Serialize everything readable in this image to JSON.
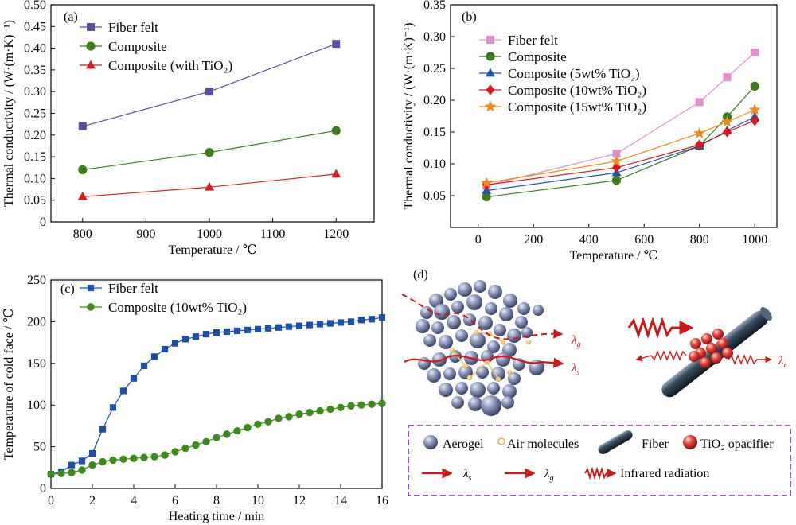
{
  "chart_data": [
    {
      "panel": "(a)",
      "type": "line",
      "xlabel": "Temperature / ℃",
      "ylabel": "Thermal conductivity / (W·(m·K)⁻¹)",
      "xlim": [
        750,
        1260
      ],
      "ylim": [
        0,
        0.5
      ],
      "xticks": [
        "800",
        "900",
        "1000",
        "1100",
        "1200"
      ],
      "yticks": [
        "0",
        "0.05",
        "0.10",
        "0.15",
        "0.20",
        "0.25",
        "0.30",
        "0.35",
        "0.40",
        "0.45",
        "0.50"
      ],
      "legend_position": "top-left",
      "series": [
        {
          "name": "Fiber felt",
          "color": "#5a4fa0",
          "marker": "square",
          "x": [
            800,
            1000,
            1200
          ],
          "y": [
            0.22,
            0.3,
            0.41
          ]
        },
        {
          "name": "Composite",
          "color": "#3d7d1e",
          "marker": "circle",
          "x": [
            800,
            1000,
            1200
          ],
          "y": [
            0.12,
            0.16,
            0.21
          ]
        },
        {
          "name": "Composite (with TiO₂)",
          "color": "#d62020",
          "marker": "triangle",
          "x": [
            800,
            1000,
            1200
          ],
          "y": [
            0.058,
            0.08,
            0.11
          ]
        }
      ]
    },
    {
      "panel": "(b)",
      "type": "line",
      "xlabel": "Temperature / ℃",
      "ylabel": "Thermal conductivity / (W·(m·K)⁻¹)",
      "xlim": [
        -100,
        1080
      ],
      "ylim": [
        0,
        0.35
      ],
      "xticks": [
        "0",
        "200",
        "400",
        "600",
        "800",
        "1000"
      ],
      "yticks": [
        "0.05",
        "0.10",
        "0.15",
        "0.20",
        "0.25",
        "0.30",
        "0.35"
      ],
      "legend_position": "top-left",
      "series": [
        {
          "name": "Fiber felt",
          "color": "#e58ecd",
          "marker": "square",
          "x": [
            30,
            500,
            800,
            900,
            1000
          ],
          "y": [
            0.066,
            0.116,
            0.197,
            0.236,
            0.275
          ]
        },
        {
          "name": "Composite",
          "color": "#3d7d1e",
          "marker": "circle",
          "x": [
            30,
            500,
            800,
            900,
            1000
          ],
          "y": [
            0.048,
            0.074,
            0.128,
            0.174,
            0.222
          ]
        },
        {
          "name": "Composite (5wt% TiO₂)",
          "color": "#2255aa",
          "marker": "triangle",
          "x": [
            30,
            500,
            800,
            900,
            1000
          ],
          "y": [
            0.058,
            0.086,
            0.128,
            0.152,
            0.174
          ]
        },
        {
          "name": "Composite (10wt% TiO₂)",
          "color": "#d61a1a",
          "marker": "diamond",
          "x": [
            30,
            500,
            800,
            900,
            1000
          ],
          "y": [
            0.067,
            0.094,
            0.13,
            0.15,
            0.168
          ]
        },
        {
          "name": "Composite (15wt% TiO₂)",
          "color": "#f08a1c",
          "marker": "star",
          "x": [
            30,
            500,
            800,
            900,
            1000
          ],
          "y": [
            0.07,
            0.104,
            0.148,
            0.166,
            0.185
          ]
        }
      ]
    },
    {
      "panel": "(c)",
      "type": "line",
      "xlabel": "Heating time / min",
      "ylabel": "Temperature of cold face / ℃",
      "xlim": [
        0,
        16
      ],
      "ylim": [
        0,
        250
      ],
      "xticks": [
        "0",
        "2",
        "4",
        "6",
        "8",
        "10",
        "12",
        "14",
        "16"
      ],
      "yticks": [
        "0",
        "50",
        "100",
        "150",
        "200",
        "250"
      ],
      "legend_position": "top-left",
      "series": [
        {
          "name": "Fiber felt",
          "color": "#1d4fa8",
          "marker": "square",
          "x": [
            0,
            0.5,
            1,
            1.5,
            2,
            2.5,
            3,
            3.5,
            4,
            4.5,
            5,
            5.5,
            6,
            6.5,
            7,
            7.5,
            8,
            8.5,
            9,
            9.5,
            10,
            10.5,
            11,
            11.5,
            12,
            12.5,
            13,
            13.5,
            14,
            14.5,
            15,
            15.5,
            16
          ],
          "y": [
            17,
            20,
            28,
            33,
            42,
            71,
            97,
            117,
            132,
            147,
            158,
            167,
            174,
            179,
            182,
            185,
            187,
            188,
            189,
            190,
            191,
            192,
            193,
            194,
            195,
            196,
            197,
            198,
            199,
            200,
            202,
            203,
            205
          ]
        },
        {
          "name": "Composite (10wt% TiO₂)",
          "color": "#3d8a1e",
          "marker": "circle",
          "x": [
            0,
            0.5,
            1,
            1.5,
            2,
            2.5,
            3,
            3.5,
            4,
            4.5,
            5,
            5.5,
            6,
            6.5,
            7,
            7.5,
            8,
            8.5,
            9,
            9.5,
            10,
            10.5,
            11,
            11.5,
            12,
            12.5,
            13,
            13.5,
            14,
            14.5,
            15,
            15.5,
            16
          ],
          "y": [
            17,
            18,
            19,
            22,
            28,
            32,
            34,
            35,
            36,
            37,
            38,
            40,
            44,
            48,
            52,
            56,
            61,
            65,
            69,
            73,
            77,
            80,
            84,
            86,
            89,
            91,
            93,
            95,
            97,
            99,
            100,
            101,
            102
          ]
        }
      ]
    }
  ],
  "diagram_d": {
    "label": "(d)",
    "lambda_g": "λ",
    "lambda_g_sub": "g",
    "lambda_s": "λ",
    "lambda_s_sub": "s",
    "lambda_r": "λ",
    "lambda_r_sub": "r",
    "legend": {
      "aerogel": "Aerogel",
      "air": "Air molecules",
      "fiber": "Fiber",
      "tio2": "TiO₂ opacifier",
      "lambda_s": "λ",
      "lambda_s_sub": "s",
      "lambda_g": "λ",
      "lambda_g_sub": "g",
      "infrared": "Infrared radiation"
    },
    "colors": {
      "aerogel": "#6f7aa3",
      "air": "#e8c268",
      "fiber": "#2a3a4a",
      "tio2": "#e0342c",
      "arrow": "#cc1a1a",
      "legend_border": "#6a2a9a"
    }
  }
}
